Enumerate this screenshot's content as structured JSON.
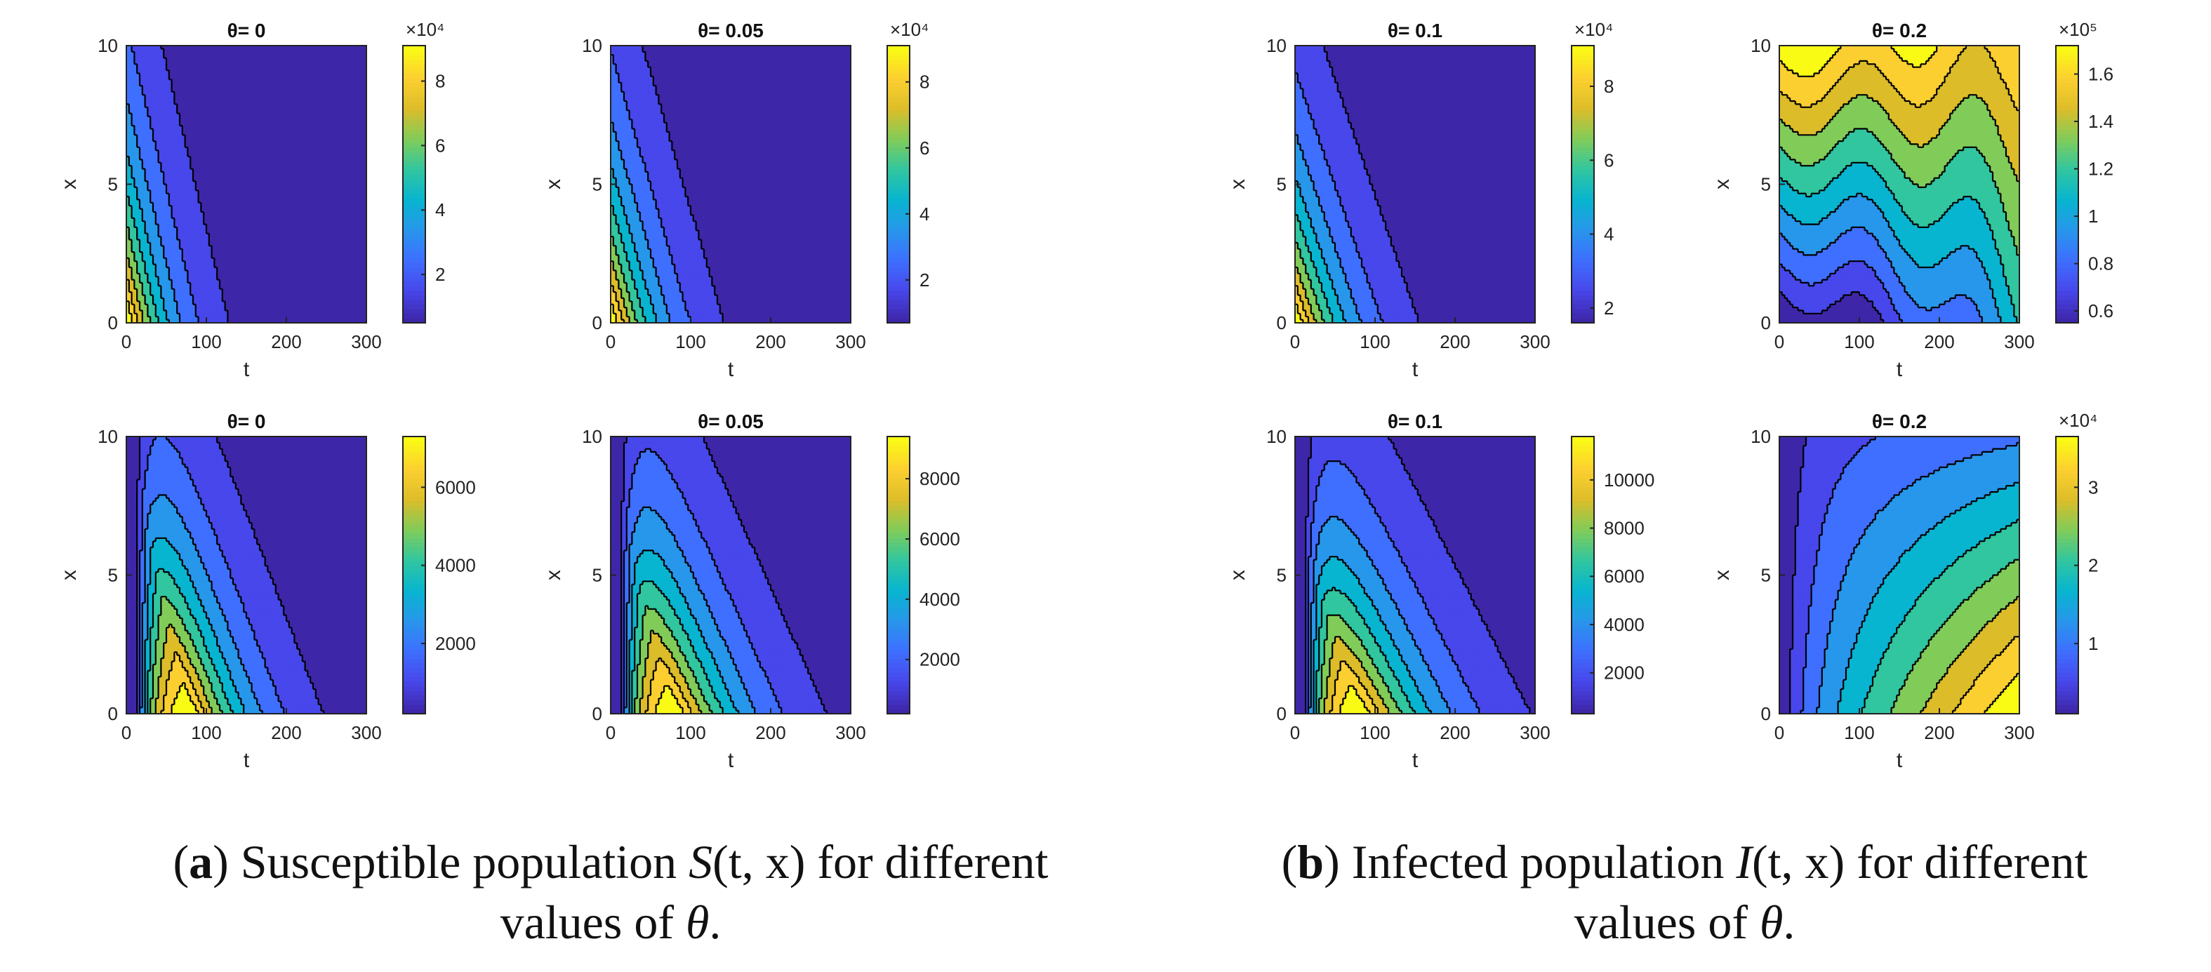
{
  "chart_data": [
    {
      "type": "heatmap",
      "panel": "S",
      "title": "θ= 0",
      "xlabel": "t",
      "ylabel": "x",
      "xticks": [
        "0",
        "100",
        "200",
        "300"
      ],
      "yticks": [
        "0",
        "5",
        "10"
      ],
      "xlim": [
        0,
        300
      ],
      "ylim": [
        0,
        10
      ],
      "colorbar": {
        "ticks": [
          "2",
          "4",
          "6",
          "8"
        ],
        "tick_values": [
          2,
          4,
          6,
          8
        ],
        "exponent": "×10⁴",
        "exp_label": "×10",
        "exp_power": "4",
        "range": [
          0.5,
          9.1
        ]
      },
      "field": {
        "kind": "susceptible",
        "theta": 0
      },
      "contours": 10
    },
    {
      "type": "heatmap",
      "panel": "S",
      "title": "θ= 0.05",
      "xlabel": "t",
      "ylabel": "x",
      "xticks": [
        "0",
        "100",
        "200",
        "300"
      ],
      "yticks": [
        "0",
        "5",
        "10"
      ],
      "xlim": [
        0,
        300
      ],
      "ylim": [
        0,
        10
      ],
      "colorbar": {
        "ticks": [
          "2",
          "4",
          "6",
          "8"
        ],
        "tick_values": [
          2,
          4,
          6,
          8
        ],
        "exponent": "×10⁴",
        "exp_label": "×10",
        "exp_power": "4",
        "range": [
          0.7,
          9.1
        ]
      },
      "field": {
        "kind": "susceptible",
        "theta": 0.05
      },
      "contours": 10
    },
    {
      "type": "heatmap",
      "panel": "S",
      "title": "θ= 0.1",
      "xlabel": "t",
      "ylabel": "x",
      "xticks": [
        "0",
        "100",
        "200",
        "300"
      ],
      "yticks": [
        "0",
        "5",
        "10"
      ],
      "xlim": [
        0,
        300
      ],
      "ylim": [
        0,
        10
      ],
      "colorbar": {
        "ticks": [
          "2",
          "4",
          "6",
          "8"
        ],
        "tick_values": [
          2,
          4,
          6,
          8
        ],
        "exponent": "×10⁴",
        "exp_label": "×10",
        "exp_power": "4",
        "range": [
          1.6,
          9.1
        ]
      },
      "field": {
        "kind": "susceptible",
        "theta": 0.1
      },
      "contours": 10
    },
    {
      "type": "heatmap",
      "panel": "S",
      "title": "θ= 0.2",
      "xlabel": "t",
      "ylabel": "x",
      "xticks": [
        "0",
        "100",
        "200",
        "300"
      ],
      "yticks": [
        "0",
        "5",
        "10"
      ],
      "xlim": [
        0,
        300
      ],
      "ylim": [
        0,
        10
      ],
      "colorbar": {
        "ticks": [
          "0.6",
          "0.8",
          "1",
          "1.2",
          "1.4",
          "1.6"
        ],
        "tick_values": [
          0.6,
          0.8,
          1,
          1.2,
          1.4,
          1.6
        ],
        "exponent": "×10⁵",
        "exp_label": "×10",
        "exp_power": "5",
        "range": [
          0.55,
          1.72
        ]
      },
      "field": {
        "kind": "susceptible",
        "theta": 0.2
      },
      "contours": 10
    },
    {
      "type": "heatmap",
      "panel": "I",
      "title": "θ= 0",
      "xlabel": "t",
      "ylabel": "x",
      "xticks": [
        "0",
        "100",
        "200",
        "300"
      ],
      "yticks": [
        "0",
        "5",
        "10"
      ],
      "xlim": [
        0,
        300
      ],
      "ylim": [
        0,
        10
      ],
      "colorbar": {
        "ticks": [
          "2000",
          "4000",
          "6000"
        ],
        "tick_values": [
          2000,
          4000,
          6000
        ],
        "exponent": "",
        "range": [
          200,
          7300
        ]
      },
      "field": {
        "kind": "infected",
        "theta": 0
      },
      "contours": 10
    },
    {
      "type": "heatmap",
      "panel": "I",
      "title": "θ= 0.05",
      "xlabel": "t",
      "ylabel": "x",
      "xticks": [
        "0",
        "100",
        "200",
        "300"
      ],
      "yticks": [
        "0",
        "5",
        "10"
      ],
      "xlim": [
        0,
        300
      ],
      "ylim": [
        0,
        10
      ],
      "colorbar": {
        "ticks": [
          "2000",
          "4000",
          "6000",
          "8000"
        ],
        "tick_values": [
          2000,
          4000,
          6000,
          8000
        ],
        "exponent": "",
        "range": [
          200,
          9400
        ]
      },
      "field": {
        "kind": "infected",
        "theta": 0.05
      },
      "contours": 10
    },
    {
      "type": "heatmap",
      "panel": "I",
      "title": "θ= 0.1",
      "xlabel": "t",
      "ylabel": "x",
      "xticks": [
        "0",
        "100",
        "200",
        "300"
      ],
      "yticks": [
        "0",
        "5",
        "10"
      ],
      "xlim": [
        0,
        300
      ],
      "ylim": [
        0,
        10
      ],
      "colorbar": {
        "ticks": [
          "2000",
          "4000",
          "6000",
          "8000",
          "10000"
        ],
        "tick_values": [
          2000,
          4000,
          6000,
          8000,
          10000
        ],
        "exponent": "",
        "range": [
          300,
          11800
        ]
      },
      "field": {
        "kind": "infected",
        "theta": 0.1
      },
      "contours": 10
    },
    {
      "type": "heatmap",
      "panel": "I",
      "title": "θ= 0.2",
      "xlabel": "t",
      "ylabel": "x",
      "xticks": [
        "0",
        "100",
        "200",
        "300"
      ],
      "yticks": [
        "0",
        "5",
        "10"
      ],
      "xlim": [
        0,
        300
      ],
      "ylim": [
        0,
        10
      ],
      "colorbar": {
        "ticks": [
          "1",
          "2",
          "3"
        ],
        "tick_values": [
          1,
          2,
          3
        ],
        "exponent": "×10⁴",
        "exp_label": "×10",
        "exp_power": "4",
        "range": [
          0.1,
          3.65
        ]
      },
      "field": {
        "kind": "infected",
        "theta": 0.2
      },
      "contours": 10
    }
  ],
  "captions": {
    "a": {
      "label": "a",
      "line1_pre": " Susceptible population ",
      "line1_var": "S",
      "line1_args": "(t, x)",
      "line1_post": " for different",
      "line2_pre": "values of ",
      "line2_var": "θ",
      "line2_post": "."
    },
    "b": {
      "label": "b",
      "line1_pre": " Infected population ",
      "line1_var": "I",
      "line1_args": "(t, x)",
      "line1_post": " for different",
      "line2_pre": "values of ",
      "line2_var": "θ",
      "line2_post": "."
    }
  }
}
